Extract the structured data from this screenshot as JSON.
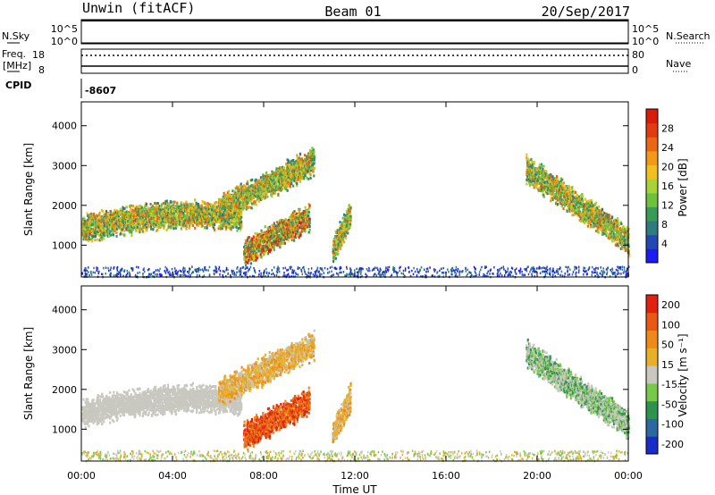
{
  "header": {
    "station": "Unwin (fitACF)",
    "beam": "Beam 01",
    "date": "20/Sep/2017"
  },
  "top_panels": {
    "nsky_label": "N.Sky",
    "nsky_ticks": [
      "10^5",
      "10^0"
    ],
    "nsearch_label": "N.Search",
    "nsearch_ticks": [
      "10^5",
      "10^0"
    ],
    "freq_label_1": "Freq.",
    "freq_label_2": "[MHz]",
    "freq_ticks": [
      "18",
      "8"
    ],
    "nave_label": "Nave",
    "nave_ticks": [
      "80",
      "0"
    ],
    "cpid_label": "CPID",
    "cpid_value": "-8607"
  },
  "chart_data": [
    {
      "type": "heatmap",
      "panel": "power",
      "ylabel": "Slant Range [km]",
      "xlabel": "",
      "ylim": [
        200,
        4600
      ],
      "y_ticks": [
        "1000",
        "2000",
        "3000",
        "4000"
      ],
      "colorbar_label": "Power [dB]",
      "colorbar_ticks": [
        "4",
        "8",
        "12",
        "16",
        "20",
        "24",
        "28"
      ],
      "colors": [
        "#1c1cf0",
        "#2348b4",
        "#2e7b80",
        "#3a9a58",
        "#6cc23c",
        "#a8d23a",
        "#f0c020",
        "#f09a18",
        "#e86814",
        "#e03c10",
        "#d81c0c"
      ],
      "features": [
        {
          "t_start": 0.0,
          "t_end": 7.0,
          "range_start": 1250,
          "range_end": 2050
        },
        {
          "t_start": 6.0,
          "t_end": 10.2,
          "range_start": 1900,
          "range_end": 3100
        },
        {
          "t_start": 7.1,
          "t_end": 10.0,
          "range_start": 800,
          "range_end": 1700
        },
        {
          "t_start": 11.0,
          "t_end": 11.8,
          "range_start": 850,
          "range_end": 1800
        },
        {
          "t_start": 19.5,
          "t_end": 24.0,
          "range_start": 1100,
          "range_end": 2900
        }
      ]
    },
    {
      "type": "heatmap",
      "panel": "velocity",
      "ylabel": "Slant Range [km]",
      "xlabel": "Time UT",
      "ylim": [
        200,
        4600
      ],
      "y_ticks": [
        "1000",
        "2000",
        "3000",
        "4000"
      ],
      "x_ticks": [
        "00:00",
        "04:00",
        "08:00",
        "12:00",
        "16:00",
        "20:00",
        "00:00"
      ],
      "colorbar_label": "Velocity [m s⁻¹]",
      "colorbar_ticks": [
        "200",
        "100",
        "50",
        "15",
        "-15",
        "-50",
        "-100",
        "-200"
      ],
      "colors": [
        "#1a2cc8",
        "#2a6aa0",
        "#2f9350",
        "#7ac84a",
        "#c8c8c0",
        "#e8b028",
        "#ee8a18",
        "#e85a14",
        "#e02010"
      ],
      "features": [
        {
          "t_start": 0.0,
          "t_end": 7.0,
          "range_start": 1250,
          "range_end": 2050
        },
        {
          "t_start": 6.0,
          "t_end": 10.2,
          "range_start": 1900,
          "range_end": 3100
        },
        {
          "t_start": 7.1,
          "t_end": 10.0,
          "range_start": 800,
          "range_end": 1700
        },
        {
          "t_start": 11.0,
          "t_end": 11.8,
          "range_start": 850,
          "range_end": 1800
        },
        {
          "t_start": 19.5,
          "t_end": 24.0,
          "range_start": 1100,
          "range_end": 2900
        }
      ]
    }
  ]
}
